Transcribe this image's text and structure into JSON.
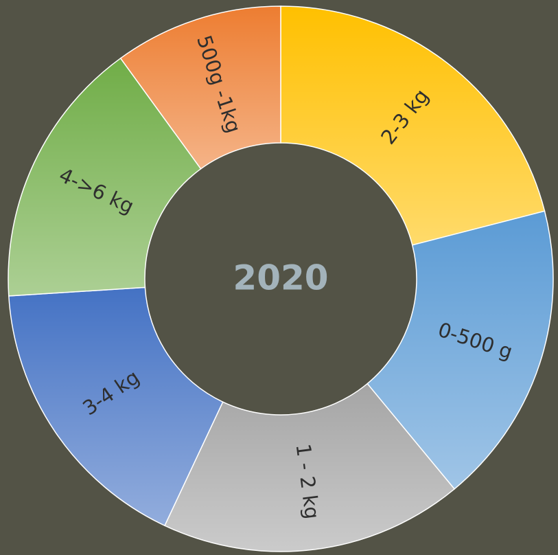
{
  "chart_data": {
    "type": "donut",
    "title": "2020",
    "categories": [
      "2-3 kg",
      "0-500 g",
      "1 - 2 kg",
      "3-4 kg",
      "4->6 kg",
      "500g -1kg"
    ],
    "values": [
      21,
      18,
      18,
      17,
      16,
      10
    ],
    "colors": [
      "#ffc000",
      "#5b9bd5",
      "#a5a5a5",
      "#4472c4",
      "#70ad47",
      "#ed7d31"
    ]
  }
}
